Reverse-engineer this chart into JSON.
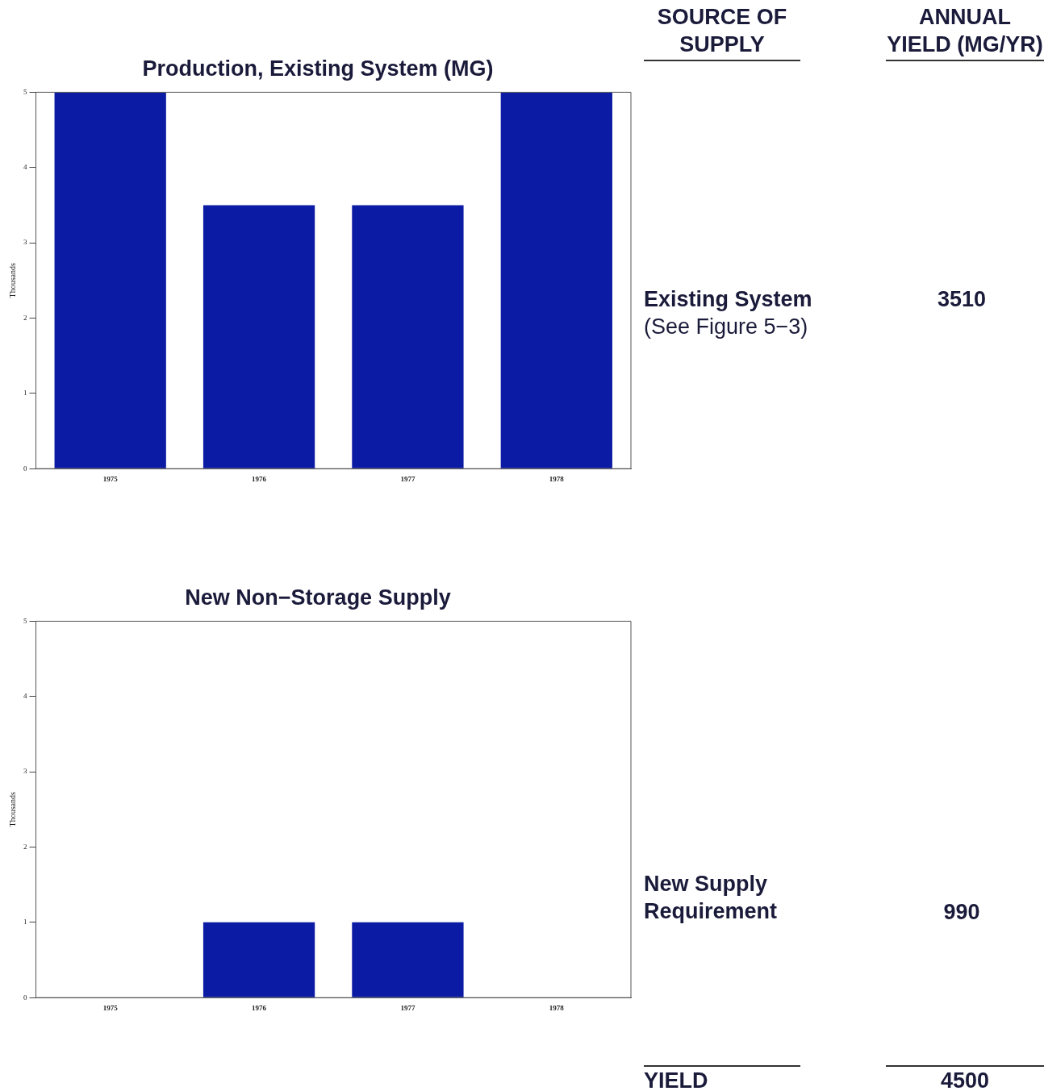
{
  "chart_data": [
    {
      "type": "bar",
      "title": "Production, Existing System (MG)",
      "ylabel": "Thousands",
      "categories": [
        "1975",
        "1976",
        "1977",
        "1978"
      ],
      "values": [
        5,
        3.5,
        3.5,
        5
      ],
      "color": "#0b1ba3",
      "ylim": [
        0,
        5
      ],
      "yticks": [
        0,
        1,
        2,
        3,
        4,
        5
      ]
    },
    {
      "type": "bar",
      "title": "New Non−Storage Supply",
      "ylabel": "Thousands",
      "categories": [
        "1975",
        "1976",
        "1977",
        "1978"
      ],
      "values": [
        0,
        1,
        1,
        0
      ],
      "color": "#0b1ba3",
      "ylim": [
        0,
        5
      ],
      "yticks": [
        0,
        1,
        2,
        3,
        4,
        5
      ]
    },
    {
      "type": "other",
      "annotations": [
        "SOURCE OF SUPPLY",
        "ANNUAL YIELD (MG/YR)",
        "Existing System",
        "(See Figure 5−3)",
        "3510",
        "New Supply Requirement",
        "990",
        "YIELD",
        "4500"
      ]
    }
  ]
}
